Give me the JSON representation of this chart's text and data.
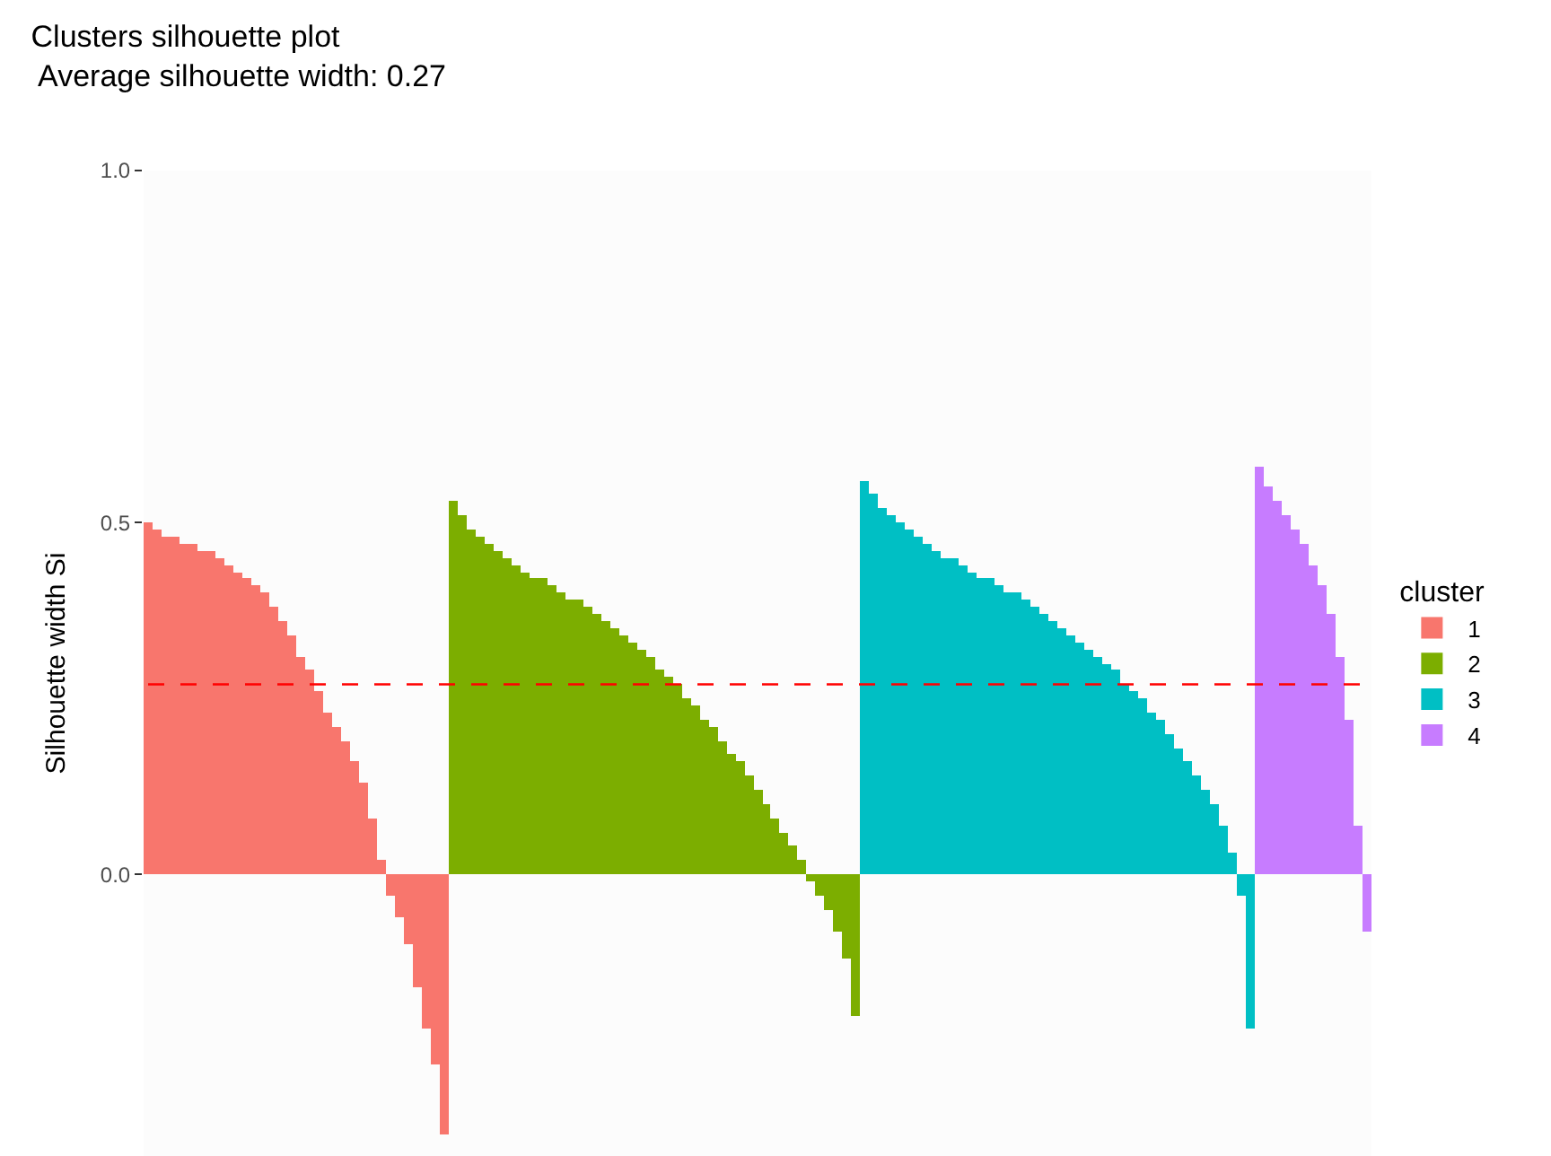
{
  "chart_data": {
    "type": "bar",
    "title": "Clusters silhouette plot\n Average silhouette width: 0.27",
    "ylabel": "Silhouette width Si",
    "legend_title": "cluster",
    "legend": "right",
    "ylim": [
      -0.4,
      1.0
    ],
    "yticks": [
      {
        "value": 0,
        "label": "0.0"
      },
      0.5,
      {
        "value": 1,
        "label": "1.0"
      }
    ],
    "ref_lines": [
      {
        "axis": "y",
        "value": 0.27,
        "color": "#ff0000",
        "line_style": "dashed"
      }
    ],
    "categories": [
      null,
      null,
      null,
      null,
      null,
      null,
      null,
      null,
      null,
      null,
      null,
      null,
      null,
      null,
      null,
      null,
      null,
      null,
      null,
      null,
      null,
      null,
      null,
      null,
      null,
      null,
      null,
      null,
      null,
      null,
      null,
      null,
      null,
      null,
      null,
      null,
      null,
      null,
      null,
      null,
      null,
      null,
      null,
      null,
      null,
      null,
      null,
      null,
      null,
      null,
      null,
      null,
      null,
      null,
      null,
      null,
      null,
      null,
      null,
      null,
      null,
      null,
      null,
      null,
      null,
      null,
      null,
      null,
      null,
      null,
      null,
      null,
      null,
      null,
      null,
      null,
      null,
      null,
      null,
      null,
      null,
      null,
      null,
      null,
      null,
      null,
      null,
      null,
      null,
      null,
      null,
      null,
      null,
      null,
      null,
      null,
      null,
      null,
      null,
      null,
      null,
      null,
      null,
      null,
      null,
      null,
      null,
      null,
      null,
      null,
      null,
      null,
      null,
      null,
      null,
      null,
      null,
      null,
      null,
      null,
      null,
      null,
      null,
      null,
      null,
      null,
      null,
      null,
      null,
      null,
      null,
      null,
      null,
      null,
      null,
      null,
      null
    ],
    "series": [
      {
        "name": "1",
        "color": "#f8766d",
        "values": [
          0.5,
          0.49,
          0.48,
          0.48,
          0.47,
          0.47,
          0.46,
          0.46,
          0.45,
          0.44,
          0.43,
          0.42,
          0.41,
          0.4,
          0.38,
          0.36,
          0.34,
          0.31,
          0.29,
          0.26,
          0.23,
          0.21,
          0.19,
          0.16,
          0.13,
          0.08,
          0.02,
          -0.03,
          -0.06,
          -0.1,
          -0.16,
          -0.22,
          -0.27,
          -0.37,
          null,
          null,
          null,
          null,
          null,
          null,
          null,
          null,
          null,
          null,
          null,
          null,
          null,
          null,
          null,
          null,
          null,
          null,
          null,
          null,
          null,
          null,
          null,
          null,
          null,
          null,
          null,
          null,
          null,
          null,
          null,
          null,
          null,
          null,
          null,
          null,
          null,
          null,
          null,
          null,
          null,
          null,
          null,
          null,
          null,
          null,
          null,
          null,
          null,
          null,
          null,
          null,
          null,
          null,
          null,
          null,
          null,
          null,
          null,
          null,
          null,
          null,
          null,
          null,
          null,
          null,
          null,
          null,
          null,
          null,
          null,
          null,
          null,
          null,
          null,
          null,
          null,
          null,
          null,
          null,
          null,
          null,
          null,
          null,
          null,
          null,
          null,
          null,
          null,
          null,
          null,
          null,
          null,
          null,
          null,
          null,
          null,
          null,
          null,
          null,
          null,
          null,
          null
        ]
      },
      {
        "name": "2",
        "color": "#7cae00",
        "values": [
          null,
          null,
          null,
          null,
          null,
          null,
          null,
          null,
          null,
          null,
          null,
          null,
          null,
          null,
          null,
          null,
          null,
          null,
          null,
          null,
          null,
          null,
          null,
          null,
          null,
          null,
          null,
          null,
          null,
          null,
          null,
          null,
          null,
          null,
          0.53,
          0.51,
          0.49,
          0.48,
          0.47,
          0.46,
          0.45,
          0.44,
          0.43,
          0.42,
          0.42,
          0.41,
          0.4,
          0.39,
          0.39,
          0.38,
          0.37,
          0.36,
          0.35,
          0.34,
          0.33,
          0.32,
          0.31,
          0.29,
          0.28,
          0.27,
          0.25,
          0.24,
          0.22,
          0.21,
          0.19,
          0.17,
          0.16,
          0.14,
          0.12,
          0.1,
          0.08,
          0.06,
          0.04,
          0.02,
          -0.01,
          -0.03,
          -0.05,
          -0.08,
          -0.12,
          -0.2,
          null,
          null,
          null,
          null,
          null,
          null,
          null,
          null,
          null,
          null,
          null,
          null,
          null,
          null,
          null,
          null,
          null,
          null,
          null,
          null,
          null,
          null,
          null,
          null,
          null,
          null,
          null,
          null,
          null,
          null,
          null,
          null,
          null,
          null,
          null,
          null,
          null,
          null,
          null,
          null,
          null,
          null,
          null,
          null,
          null,
          null,
          null,
          null,
          null,
          null,
          null,
          null,
          null,
          null,
          null,
          null,
          null
        ]
      },
      {
        "name": "3",
        "color": "#00bfc4",
        "values": [
          null,
          null,
          null,
          null,
          null,
          null,
          null,
          null,
          null,
          null,
          null,
          null,
          null,
          null,
          null,
          null,
          null,
          null,
          null,
          null,
          null,
          null,
          null,
          null,
          null,
          null,
          null,
          null,
          null,
          null,
          null,
          null,
          null,
          null,
          null,
          null,
          null,
          null,
          null,
          null,
          null,
          null,
          null,
          null,
          null,
          null,
          null,
          null,
          null,
          null,
          null,
          null,
          null,
          null,
          null,
          null,
          null,
          null,
          null,
          null,
          null,
          null,
          null,
          null,
          null,
          null,
          null,
          null,
          null,
          null,
          null,
          null,
          null,
          null,
          null,
          null,
          null,
          null,
          null,
          null,
          0.56,
          0.54,
          0.52,
          0.51,
          0.5,
          0.49,
          0.48,
          0.47,
          0.46,
          0.45,
          0.45,
          0.44,
          0.43,
          0.42,
          0.42,
          0.41,
          0.4,
          0.4,
          0.39,
          0.38,
          0.37,
          0.36,
          0.35,
          0.34,
          0.33,
          0.32,
          0.31,
          0.3,
          0.29,
          0.27,
          0.26,
          0.25,
          0.23,
          0.22,
          0.2,
          0.18,
          0.16,
          0.14,
          0.12,
          0.1,
          0.07,
          0.03,
          -0.03,
          -0.22,
          null,
          null,
          null,
          null,
          null,
          null,
          null,
          null,
          null,
          null,
          null,
          null,
          null
        ]
      },
      {
        "name": "4",
        "color": "#c77cff",
        "values": [
          null,
          null,
          null,
          null,
          null,
          null,
          null,
          null,
          null,
          null,
          null,
          null,
          null,
          null,
          null,
          null,
          null,
          null,
          null,
          null,
          null,
          null,
          null,
          null,
          null,
          null,
          null,
          null,
          null,
          null,
          null,
          null,
          null,
          null,
          null,
          null,
          null,
          null,
          null,
          null,
          null,
          null,
          null,
          null,
          null,
          null,
          null,
          null,
          null,
          null,
          null,
          null,
          null,
          null,
          null,
          null,
          null,
          null,
          null,
          null,
          null,
          null,
          null,
          null,
          null,
          null,
          null,
          null,
          null,
          null,
          null,
          null,
          null,
          null,
          null,
          null,
          null,
          null,
          null,
          null,
          null,
          null,
          null,
          null,
          null,
          null,
          null,
          null,
          null,
          null,
          null,
          null,
          null,
          null,
          null,
          null,
          null,
          null,
          null,
          null,
          null,
          null,
          null,
          null,
          null,
          null,
          null,
          null,
          null,
          null,
          null,
          null,
          null,
          null,
          null,
          null,
          null,
          null,
          null,
          null,
          null,
          null,
          null,
          null,
          0.58,
          0.55,
          0.53,
          0.51,
          0.49,
          0.47,
          0.44,
          0.41,
          0.37,
          0.31,
          0.22,
          0.07,
          -0.08
        ]
      }
    ]
  }
}
